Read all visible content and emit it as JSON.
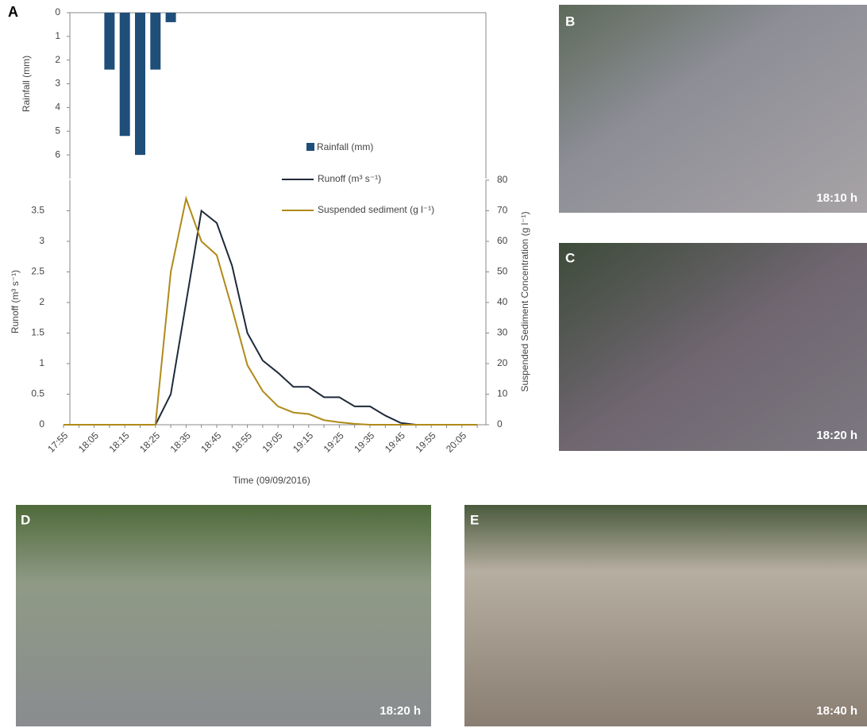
{
  "chart_data": [
    {
      "type": "bar",
      "panel": "A",
      "ylabel": "Rainfall (mm)",
      "ylim": [
        0,
        7
      ],
      "yticks": [
        0,
        1,
        2,
        3,
        4,
        5,
        6
      ],
      "inverted": true,
      "series": [
        {
          "name": "Rainfall (mm)",
          "color": "#1f4e79",
          "values": [
            0,
            0,
            0,
            2.4,
            5.2,
            6,
            2.4,
            0.4,
            0,
            0,
            0,
            0,
            0,
            0,
            0,
            0,
            0,
            0,
            0,
            0,
            0,
            0,
            0,
            0,
            0,
            0,
            0,
            0
          ]
        }
      ]
    },
    {
      "type": "line",
      "xlabel": "Time (09/09/2016)",
      "ylabel": "Runoff (m³ s⁻¹)",
      "y2label": "Suspended Sediment Concentration (g l⁻¹)",
      "categories": [
        "17:55",
        null,
        "18:05",
        null,
        "18:15",
        null,
        "18:25",
        null,
        "18:35",
        null,
        "18:45",
        null,
        "18:55",
        null,
        "19:05",
        null,
        "19:15",
        null,
        "19:25",
        null,
        "19:35",
        null,
        "19:45",
        null,
        "19:55",
        null,
        "20:05",
        null
      ],
      "ylim": [
        0,
        4
      ],
      "yticks": [
        0,
        0.5,
        1,
        1.5,
        2,
        2.5,
        3,
        3.5
      ],
      "y2lim": [
        0,
        80
      ],
      "y2ticks": [
        0,
        10,
        20,
        30,
        40,
        50,
        60,
        70,
        80
      ],
      "series": [
        {
          "name": "Runoff (m³ s⁻¹)",
          "color": "#1f2a3a",
          "values": [
            0,
            0,
            0,
            0,
            0,
            0,
            0,
            0.5,
            2.0,
            3.5,
            3.3,
            2.6,
            1.5,
            1.05,
            0.85,
            0.62,
            0.62,
            0.45,
            0.45,
            0.3,
            0.3,
            0.15,
            0.03,
            0,
            0,
            0,
            0,
            0
          ]
        },
        {
          "name": "Suspended sediment (g l⁻¹)",
          "color": "#b08a1a",
          "axis": "y2",
          "values": [
            0,
            0,
            0,
            0,
            0,
            0,
            0,
            50,
            74,
            60,
            55.5,
            38,
            19.5,
            11,
            6,
            4,
            3.5,
            1.5,
            0.8,
            0.3,
            0,
            0,
            0,
            0,
            0,
            0,
            0,
            0
          ]
        }
      ]
    }
  ],
  "photos": [
    {
      "label": "B",
      "time": "18:10 h"
    },
    {
      "label": "C",
      "time": "18:20 h"
    },
    {
      "label": "D",
      "time": "18:20 h"
    },
    {
      "label": "E",
      "time": "18:40 h"
    }
  ]
}
